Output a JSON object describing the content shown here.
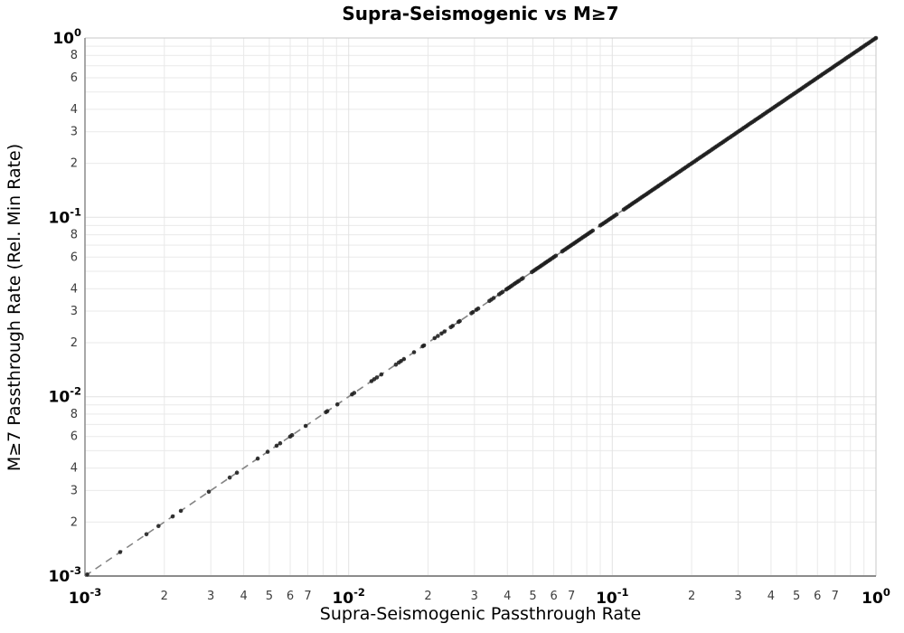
{
  "chart_data": {
    "type": "scatter",
    "title": "Supra-Seismogenic vs M≥7",
    "xlabel": "Supra-Seismogenic Passthrough Rate",
    "ylabel": "M≥7 Passthrough Rate (Rel. Min Rate)",
    "xscale": "log",
    "yscale": "log",
    "xlim": [
      0.001,
      1.0
    ],
    "ylim": [
      0.001,
      1.0
    ],
    "grid": true,
    "decade_exponents": [
      -3,
      -2,
      -1,
      0
    ],
    "x_minor_labeled_multiples": [
      2,
      3,
      4,
      5,
      6,
      7
    ],
    "y_minor_labeled_multiples": [
      2,
      3,
      4,
      6,
      8
    ],
    "minor_gridline_multiples": [
      2,
      3,
      4,
      5,
      6,
      7,
      8,
      9
    ],
    "reference_line": {
      "relation": "y = x",
      "style": "dashed",
      "color": "#858585",
      "x_from": 0.001,
      "x_to": 1.0
    },
    "marker": {
      "shape": "circle",
      "color": "#1c1c1c",
      "radius_px": 2.3,
      "opacity": 0.88
    },
    "y_equals_x": true,
    "x_values": [
      0.00102,
      0.00136,
      0.00171,
      0.0019,
      0.00215,
      0.00231,
      0.00295,
      0.00354,
      0.00377,
      0.00452,
      0.00493,
      0.00533,
      0.0055,
      0.006,
      0.0061,
      0.00687,
      0.0082,
      0.0083,
      0.00906,
      0.0103,
      0.0105,
      0.0122,
      0.0125,
      0.0128,
      0.0133,
      0.0151,
      0.0155,
      0.0158,
      0.0162,
      0.0177,
      0.0191,
      0.0193,
      0.0212,
      0.0218,
      0.0225,
      0.0231,
      0.0244,
      0.0248,
      0.0261,
      0.0264,
      0.0292,
      0.0296,
      0.0305,
      0.031,
      0.0342,
      0.0348,
      0.0355,
      0.0372,
      0.0378,
      0.0384,
      0.0396,
      0.0401,
      0.0406,
      0.0412,
      0.0418,
      0.0425,
      0.0431,
      0.0437,
      0.0443,
      0.0452,
      0.0458,
      0.0495,
      0.0502,
      0.0509,
      0.0516,
      0.0523,
      0.0531,
      0.0538,
      0.0546,
      0.0554,
      0.0561,
      0.0569,
      0.0577,
      0.0585,
      0.0594,
      0.0602,
      0.0611,
      0.0645,
      0.0654,
      0.0663,
      0.0673,
      0.0682,
      0.0692,
      0.0702,
      0.0712,
      0.0722,
      0.0732,
      0.0743,
      0.0753,
      0.0764,
      0.0775,
      0.0786,
      0.0797,
      0.0808,
      0.082,
      0.0831,
      0.0843,
      0.0901,
      0.0914,
      0.0927,
      0.094,
      0.0953,
      0.0967,
      0.0981,
      0.0995,
      0.1009,
      0.1023,
      0.1038,
      0.1105,
      0.1121,
      0.1137,
      0.1153,
      0.1169,
      0.1186,
      0.1203,
      0.122,
      0.1237,
      0.1255,
      0.1273,
      0.1291,
      0.1309,
      0.1328,
      0.1347,
      0.1366,
      0.1385,
      0.1405,
      0.1425,
      0.1445,
      0.1466,
      0.1487,
      0.15,
      0.1523,
      0.1545,
      0.1569,
      0.1592,
      0.1616,
      0.164,
      0.1665,
      0.169,
      0.1715,
      0.1741,
      0.1767,
      0.1793,
      0.182,
      0.1848,
      0.1875,
      0.1903,
      0.1932,
      0.1961,
      0.199,
      0.202,
      0.205,
      0.2081,
      0.2112,
      0.2144,
      0.2176,
      0.2209,
      0.2242,
      0.2276,
      0.231,
      0.2344,
      0.238,
      0.2415,
      0.2452,
      0.2488,
      0.2526,
      0.2564,
      0.2602,
      0.2641,
      0.2681,
      0.2721,
      0.2762,
      0.2803,
      0.2845,
      0.2888,
      0.2931,
      0.2975,
      0.302,
      0.3065,
      0.3111,
      0.3158,
      0.3205,
      0.3253,
      0.3302,
      0.3352,
      0.3402,
      0.3453,
      0.3505,
      0.3557,
      0.3611,
      0.3665,
      0.372,
      0.3776,
      0.3832,
      0.389,
      0.3948,
      0.4007,
      0.4067,
      0.4128,
      0.419,
      0.4253,
      0.4317,
      0.4382,
      0.4448,
      0.4514,
      0.4582,
      0.4651,
      0.4721,
      0.4791,
      0.4863,
      0.4936,
      0.501,
      0.5086,
      0.5162,
      0.5239,
      0.5318,
      0.5398,
      0.5479,
      0.5561,
      0.5644,
      0.5729,
      0.5815,
      0.5902,
      0.5991,
      0.6081,
      0.6172,
      0.6264,
      0.6358,
      0.6454,
      0.6551,
      0.6649,
      0.6749,
      0.685,
      0.6953,
      0.7057,
      0.7163,
      0.727,
      0.7379,
      0.749,
      0.7602,
      0.7716,
      0.7832,
      0.795,
      0.8069,
      0.819,
      0.8313,
      0.8438,
      0.8564,
      0.8693,
      0.8823,
      0.8956,
      0.909,
      0.9226,
      0.9365,
      0.9505,
      0.9648,
      0.9793,
      0.994,
      1.0
    ],
    "colors": {
      "background": "#ffffff",
      "grid": "#e9e9e9",
      "spine_main": "#8c8c8c",
      "spine_light": "#c8c8c8",
      "major_tick_label": "#000000",
      "minor_tick_label": "#3d3d3d",
      "marker": "#1c1c1c",
      "reference_line": "#858585"
    },
    "legend": null
  }
}
